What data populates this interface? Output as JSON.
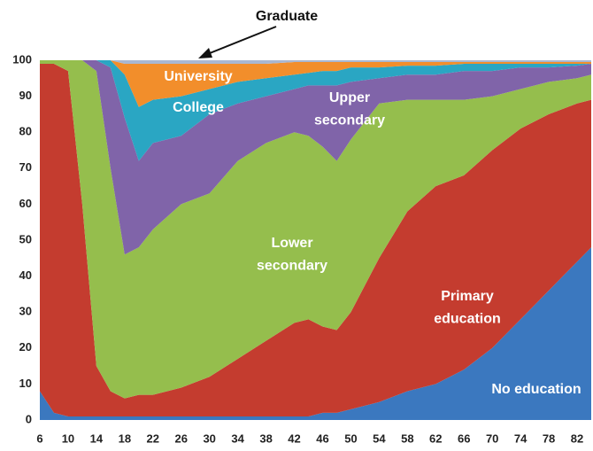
{
  "chart_data": {
    "type": "stacked_area",
    "x": [
      6,
      8,
      10,
      12,
      14,
      16,
      18,
      20,
      22,
      26,
      30,
      34,
      38,
      42,
      44,
      46,
      48,
      50,
      54,
      58,
      62,
      66,
      70,
      74,
      78,
      82,
      84
    ],
    "xlim": [
      6,
      84
    ],
    "xticks": [
      6,
      10,
      14,
      18,
      22,
      26,
      30,
      34,
      38,
      42,
      46,
      50,
      54,
      58,
      62,
      66,
      70,
      74,
      78,
      82
    ],
    "ylim": [
      0,
      100
    ],
    "yticks": [
      0,
      10,
      20,
      30,
      40,
      50,
      60,
      70,
      80,
      90,
      100
    ],
    "series": [
      {
        "name": "No education",
        "color": "#3b78bf",
        "values": [
          8,
          2,
          1,
          1,
          1,
          1,
          1,
          1,
          1,
          1,
          1,
          1,
          1,
          1,
          1,
          2,
          2,
          3,
          5,
          8,
          10,
          14,
          20,
          28,
          36,
          44,
          48
        ]
      },
      {
        "name": "Primary education",
        "color": "#c43c2f",
        "values": [
          91,
          97,
          96,
          59,
          14,
          7,
          5,
          6,
          6,
          8,
          11,
          16,
          21,
          26,
          27,
          24,
          23,
          27,
          40,
          50,
          55,
          54,
          55,
          53,
          49,
          44,
          41
        ]
      },
      {
        "name": "Lower secondary",
        "color": "#95be4d",
        "values": [
          1,
          1,
          3,
          40,
          82,
          62,
          40,
          41,
          46,
          51,
          51,
          55,
          55,
          53,
          51,
          50,
          47,
          48,
          43,
          31,
          24,
          21,
          15,
          11,
          9,
          7,
          7
        ]
      },
      {
        "name": "Upper secondary",
        "color": "#8064a9",
        "values": [
          0,
          0,
          0,
          0,
          3,
          28,
          38,
          24,
          24,
          19,
          22,
          16,
          13,
          12,
          14,
          17,
          21,
          16,
          7,
          7,
          7,
          8,
          7,
          6,
          4,
          3.5,
          3
        ]
      },
      {
        "name": "College",
        "color": "#2aa6c3",
        "values": [
          0,
          0,
          0,
          0,
          0,
          2,
          12,
          15,
          12,
          11,
          7,
          6,
          5,
          4,
          3.5,
          4,
          4,
          4,
          3,
          2.5,
          2.5,
          2,
          2,
          1,
          1,
          0.5,
          0
        ]
      },
      {
        "name": "University",
        "color": "#f28e2b",
        "values": [
          0,
          0,
          0,
          0,
          0,
          0,
          3,
          12,
          10,
          9,
          7,
          5,
          4,
          3.5,
          3,
          2.5,
          2.5,
          1.5,
          1.5,
          1,
          1,
          0.5,
          0.5,
          0.5,
          0.5,
          0.5,
          0.5
        ]
      },
      {
        "name": "Graduate",
        "color": "#a9b7d1",
        "values": [
          0,
          0,
          0,
          0,
          0,
          0,
          1,
          1,
          1,
          1,
          1,
          1,
          1,
          0.5,
          0.5,
          0.5,
          0.5,
          0.5,
          0.5,
          0.5,
          0.5,
          0.5,
          0.5,
          0.5,
          0.5,
          0.5,
          0.5
        ]
      }
    ]
  }
}
